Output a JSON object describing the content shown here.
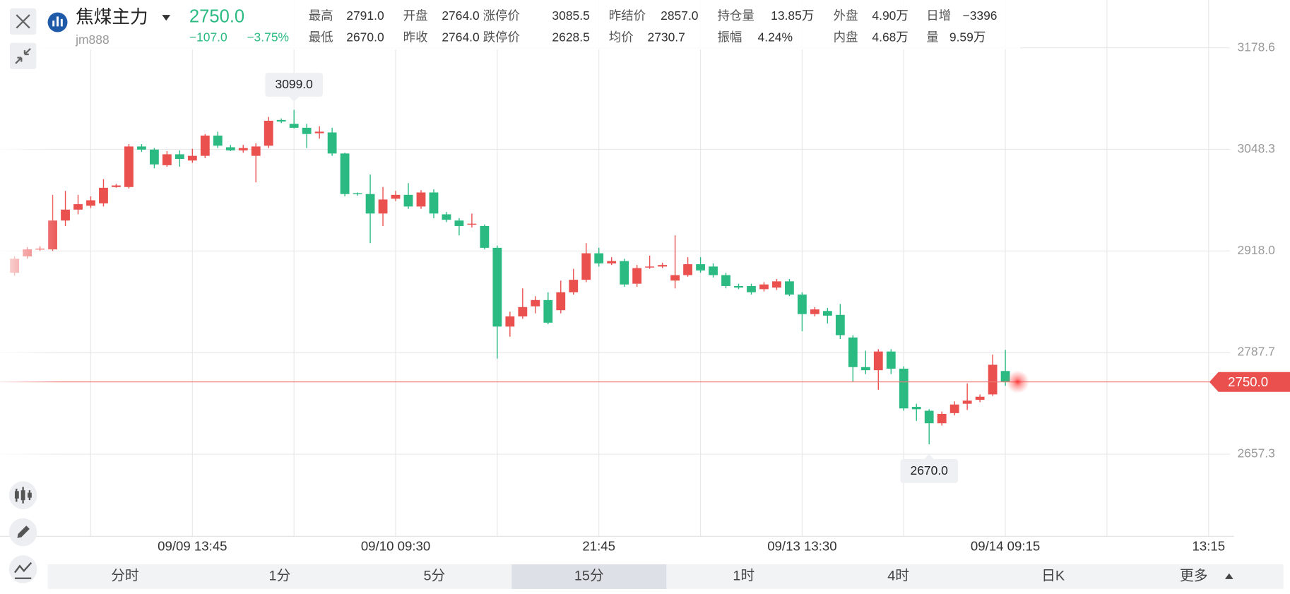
{
  "header": {
    "symbol": "焦煤主力",
    "code": "jm888",
    "price": "2750.0",
    "change": "−107.0",
    "change_pct": "−3.75%",
    "stats": [
      [
        [
          "最高",
          "2791.0"
        ],
        [
          "开盘",
          "2764.0"
        ],
        [
          "涨停价",
          "3085.5"
        ],
        [
          "昨结价",
          "2857.0"
        ],
        [
          "持仓量",
          "13.85万"
        ],
        [
          "外盘",
          "4.90万"
        ],
        [
          "日增",
          "−3396"
        ]
      ],
      [
        [
          "最低",
          "2670.0"
        ],
        [
          "昨收",
          "2764.0"
        ],
        [
          "跌停价",
          "2628.5"
        ],
        [
          "均价",
          "2730.7"
        ],
        [
          "振幅",
          "4.24%"
        ],
        [
          "内盘",
          "4.68万"
        ],
        [
          "量",
          "9.59万"
        ]
      ]
    ]
  },
  "tabs": [
    "分时",
    "1分",
    "5分",
    "15分",
    "1时",
    "4时",
    "日K",
    "更多"
  ],
  "chart_data": {
    "type": "candlestick",
    "up_color": "#e9504e",
    "down_color": "#2bbb82",
    "grid": true,
    "categories": [
      null,
      null,
      null,
      null,
      null,
      null,
      null,
      null,
      null,
      null,
      null,
      null,
      null,
      null,
      "09/09 13:45",
      null,
      null,
      null,
      null,
      null,
      null,
      null,
      null,
      null,
      null,
      null,
      null,
      null,
      null,
      null,
      "09/10 09:30",
      null,
      null,
      null,
      null,
      null,
      null,
      null,
      null,
      null,
      null,
      null,
      null,
      null,
      null,
      null,
      "21:45",
      null,
      null,
      null,
      null,
      null,
      null,
      null,
      null,
      null,
      null,
      null,
      null,
      null,
      null,
      null,
      "09/13 13:30",
      null,
      null,
      null,
      null,
      null,
      null,
      null,
      null,
      null,
      null,
      null,
      null,
      null,
      null,
      null,
      "09/14 09:15",
      null,
      null,
      null,
      null,
      null,
      null,
      null,
      null,
      null,
      null,
      null,
      null,
      null,
      null,
      null,
      "13:15"
    ],
    "open": [
      2890,
      2911,
      2920,
      2920,
      2957,
      2971,
      2976,
      2979,
      3000,
      3000,
      3052,
      3048,
      3028,
      3042,
      3034,
      3040,
      3066,
      3051,
      3047,
      3040,
      3053,
      3086,
      3081,
      3076,
      3069,
      3070,
      3043,
      2992,
      2991,
      2966,
      2985,
      2990,
      2975,
      2993,
      2965,
      2957,
      2952,
      2950,
      2922,
      2821,
      2834,
      2847,
      2855,
      2842,
      2865,
      2881,
      2915,
      2902,
      2905,
      2876,
      2897,
      2898,
      2880,
      2887,
      2901,
      2898,
      2887,
      2873,
      2873,
      2869,
      2871,
      2879,
      2862,
      2837,
      2841,
      2836,
      2807,
      2769,
      2765,
      2789,
      2767,
      2718,
      2713,
      2697,
      2710,
      2722,
      2727,
      2734,
      2764,
      null,
      null,
      null,
      null,
      null,
      null,
      null,
      null,
      null,
      null,
      null,
      null,
      null,
      null,
      null,
      null
    ],
    "high": [
      2911,
      2923,
      2924,
      2990,
      2995,
      2990,
      2988,
      3010,
      3004,
      3055,
      3055,
      3050,
      3046,
      3047,
      3049,
      3068,
      3071,
      3054,
      3054,
      3056,
      3090,
      3088,
      3099,
      3081,
      3078,
      3076,
      3044,
      2993,
      3016,
      3000,
      2995,
      3005,
      2996,
      2997,
      2968,
      2960,
      2966,
      2952,
      2925,
      2840,
      2870,
      2860,
      2865,
      2880,
      2895,
      2928,
      2922,
      2910,
      2908,
      2900,
      2912,
      2903,
      2938,
      2910,
      2910,
      2902,
      2890,
      2876,
      2876,
      2878,
      2882,
      2882,
      2865,
      2846,
      2845,
      2850,
      2810,
      2790,
      2792,
      2792,
      2770,
      2722,
      2715,
      2712,
      2725,
      2748,
      2734,
      2785,
      2791,
      null,
      null,
      null,
      null,
      null,
      null,
      null,
      null,
      null,
      null,
      null,
      null,
      null,
      null,
      null,
      null
    ],
    "low": [
      2886,
      2908,
      2918,
      2918,
      2950,
      2965,
      2973,
      2975,
      2999,
      2998,
      3045,
      3024,
      3026,
      3026,
      3031,
      3037,
      3050,
      3046,
      3044,
      3006,
      3050,
      3082,
      3075,
      3050,
      3062,
      3040,
      2988,
      2989,
      2928,
      2950,
      2982,
      2972,
      2972,
      2960,
      2955,
      2938,
      2948,
      2920,
      2780,
      2808,
      2831,
      2838,
      2824,
      2838,
      2862,
      2878,
      2898,
      2900,
      2872,
      2872,
      2895,
      2896,
      2870,
      2885,
      2890,
      2884,
      2870,
      2869,
      2862,
      2866,
      2868,
      2860,
      2815,
      2834,
      2825,
      2805,
      2750,
      2760,
      2740,
      2760,
      2713,
      2700,
      2670,
      2694,
      2707,
      2714,
      2724,
      2732,
      2745,
      null,
      null,
      null,
      null,
      null,
      null,
      null,
      null,
      null,
      null,
      null,
      null,
      null,
      null,
      null,
      null
    ],
    "close": [
      2908,
      2920,
      2921,
      2957,
      2971,
      2978,
      2983,
      2999,
      3002,
      3052,
      3048,
      3029,
      3042,
      3036,
      3040,
      3066,
      3053,
      3047,
      3050,
      3052,
      3085,
      3084,
      3076,
      3068,
      3071,
      3043,
      2991,
      2991,
      2966,
      2984,
      2990,
      2975,
      2993,
      2966,
      2958,
      2950,
      2953,
      2922,
      2821,
      2834,
      2846,
      2855,
      2826,
      2865,
      2881,
      2915,
      2902,
      2905,
      2875,
      2896,
      2898,
      2900,
      2887,
      2901,
      2893,
      2887,
      2873,
      2871,
      2865,
      2875,
      2879,
      2862,
      2837,
      2843,
      2835,
      2810,
      2769,
      2765,
      2789,
      2767,
      2716,
      2715,
      2697,
      2709,
      2721,
      2726,
      2731,
      2772,
      2750,
      null,
      null,
      null,
      null,
      null,
      null,
      null,
      null,
      null,
      null,
      null,
      null,
      null,
      null,
      null,
      null
    ],
    "ylim": [
      2551.9,
      3239.8
    ],
    "yticks": [
      3178.6,
      3048.3,
      {
        "value": 2918,
        "label": "2918.0"
      },
      2787.7,
      2657.3
    ],
    "last_price": {
      "value": 2750,
      "label": "2750.0"
    },
    "annotations": [
      {
        "label": "3099.0",
        "value": 3099,
        "index": 22
      },
      {
        "label": "2670.0",
        "value": 2670,
        "index": 72
      }
    ]
  }
}
